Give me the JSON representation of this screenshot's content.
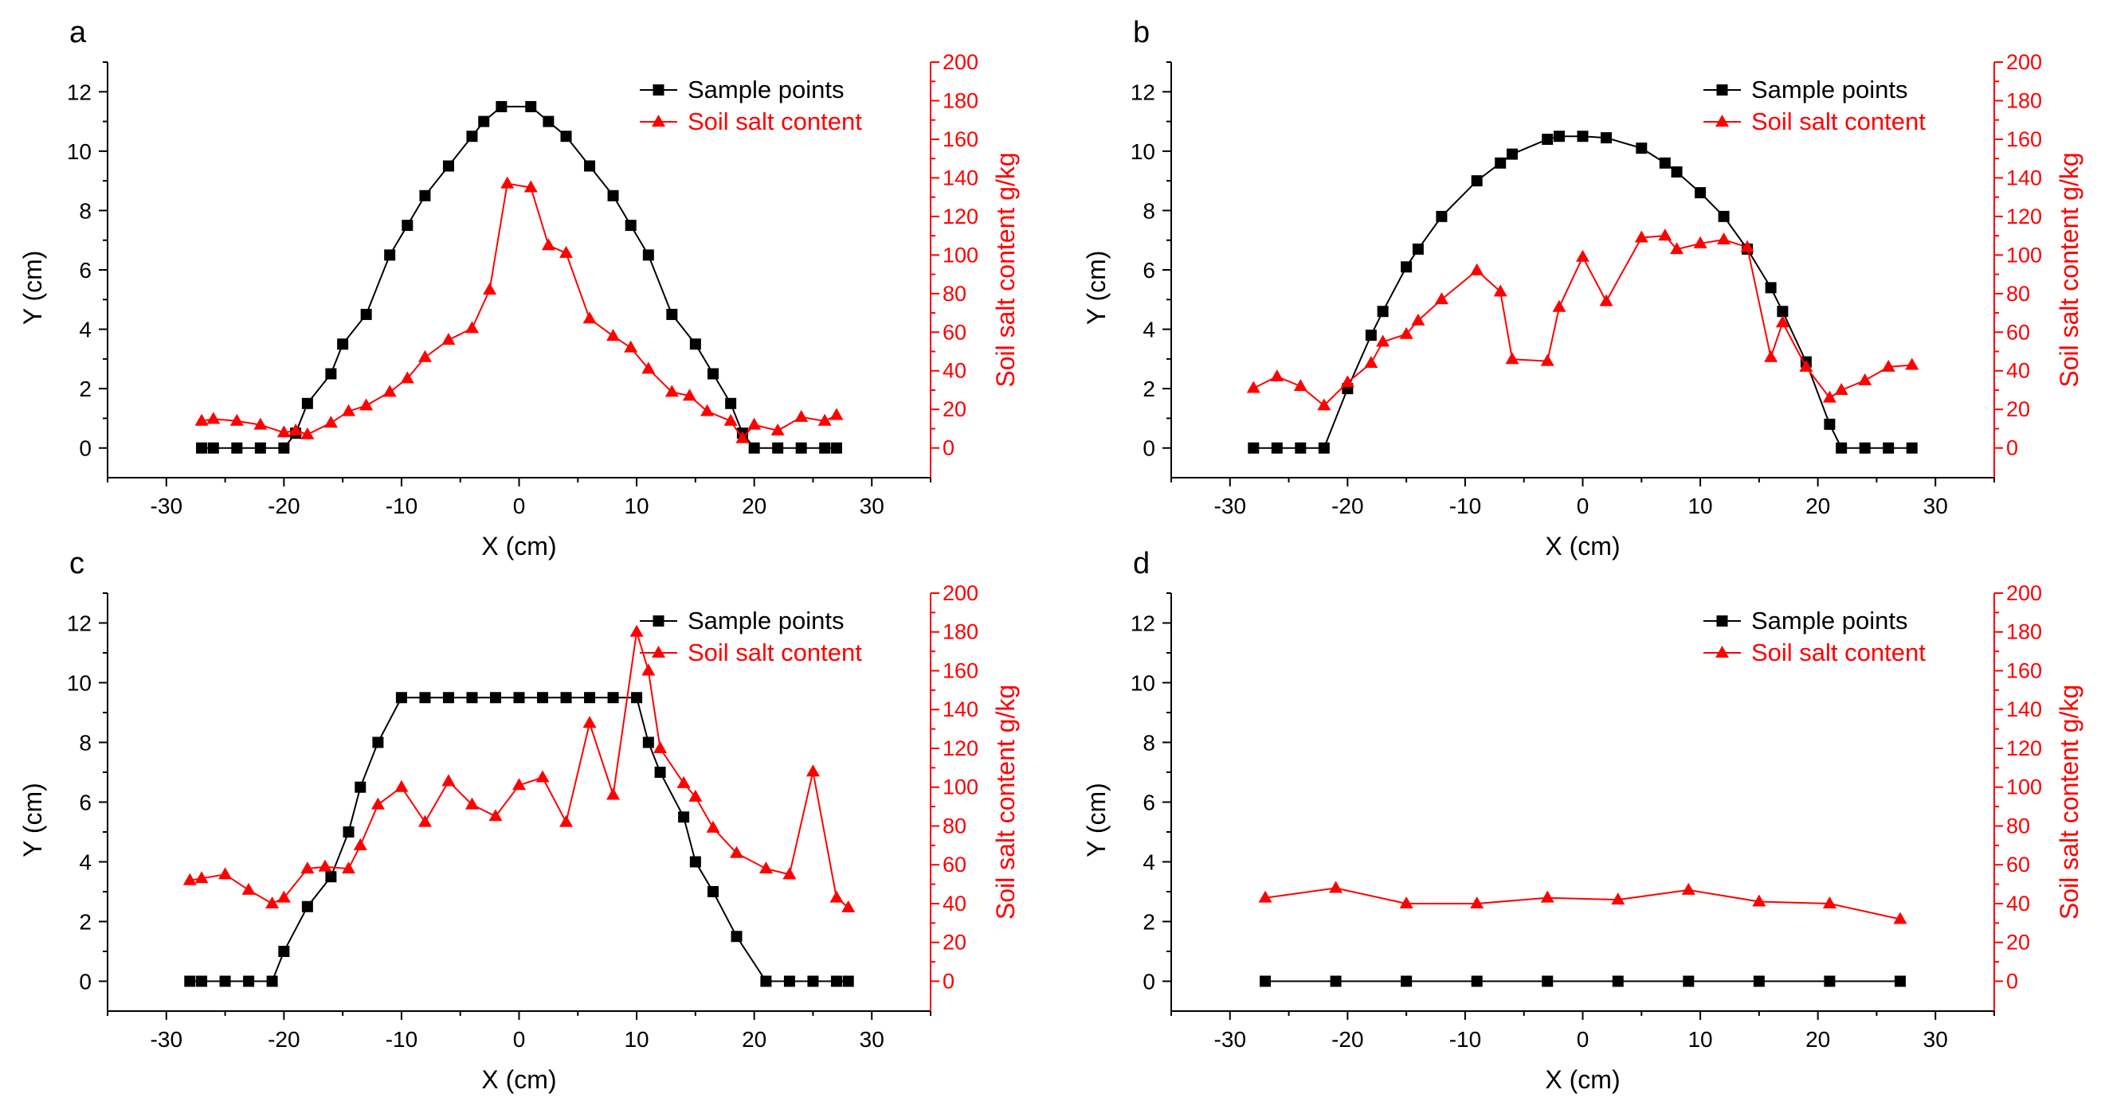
{
  "chart_data": [
    {
      "panel": "a",
      "type": "line",
      "xlabel": "X (cm)",
      "ylabel": "Y (cm)",
      "ylabel_right": "Soil salt content g/kg",
      "xlim": [
        -35,
        35
      ],
      "ylim": [
        -1,
        13
      ],
      "ylim_right": [
        -15.4,
        200
      ],
      "xticks": [
        -30,
        -20,
        -10,
        0,
        10,
        20,
        30
      ],
      "yticks": [
        0,
        2,
        4,
        6,
        8,
        10,
        12
      ],
      "yticks_right": [
        0,
        20,
        40,
        60,
        80,
        100,
        120,
        140,
        160,
        180,
        200
      ],
      "legend": {
        "position": "top-right",
        "entries": [
          "Sample points",
          "Soil salt content"
        ]
      },
      "series": [
        {
          "name": "Sample points",
          "axis": "left",
          "color": "#000000",
          "marker": "square",
          "x": [
            -27,
            -26,
            -24,
            -22,
            -20,
            -19,
            -18,
            -16,
            -15,
            -13,
            -11,
            -9.5,
            -8,
            -6,
            -4,
            -3,
            -1.5,
            1,
            2.5,
            4,
            6,
            8,
            9.5,
            11,
            13,
            15,
            16.5,
            18,
            19,
            20,
            22,
            24,
            26,
            27
          ],
          "y": [
            0,
            0,
            0,
            0,
            0,
            0.5,
            1.5,
            2.5,
            3.5,
            4.5,
            6.5,
            7.5,
            8.5,
            9.5,
            10.5,
            11,
            11.5,
            11.5,
            11,
            10.5,
            9.5,
            8.5,
            7.5,
            6.5,
            4.5,
            3.5,
            2.5,
            1.5,
            0.5,
            0,
            0,
            0,
            0,
            0
          ]
        },
        {
          "name": "Soil salt content",
          "axis": "right",
          "color": "#ff0000",
          "marker": "triangle",
          "x": [
            -27,
            -26,
            -24,
            -22,
            -20,
            -19,
            -18,
            -16,
            -14.5,
            -13,
            -11,
            -9.5,
            -8,
            -6,
            -4,
            -2.5,
            -1,
            1,
            2.5,
            4,
            6,
            8,
            9.5,
            11,
            13,
            14.5,
            16,
            18,
            19,
            20,
            22,
            24,
            26,
            27
          ],
          "y": [
            14,
            15,
            14,
            12,
            8,
            9,
            7,
            13,
            19,
            22,
            29,
            36,
            47,
            56,
            62,
            82,
            137,
            135,
            105,
            101,
            67,
            58,
            52,
            41,
            29,
            27,
            19,
            14,
            5,
            12,
            9,
            16,
            14,
            17
          ]
        }
      ]
    },
    {
      "panel": "b",
      "type": "line",
      "xlabel": "X (cm)",
      "ylabel": "Y (cm)",
      "ylabel_right": "Soil salt content g/kg",
      "xlim": [
        -35,
        35
      ],
      "ylim": [
        -1,
        13
      ],
      "ylim_right": [
        -15.4,
        200
      ],
      "xticks": [
        -30,
        -20,
        -10,
        0,
        10,
        20,
        30
      ],
      "yticks": [
        0,
        2,
        4,
        6,
        8,
        10,
        12
      ],
      "yticks_right": [
        0,
        20,
        40,
        60,
        80,
        100,
        120,
        140,
        160,
        180,
        200
      ],
      "legend": {
        "position": "top-right",
        "entries": [
          "Sample points",
          "Soil salt content"
        ]
      },
      "series": [
        {
          "name": "Sample points",
          "axis": "left",
          "color": "#000000",
          "marker": "square",
          "x": [
            -28,
            -26,
            -24,
            -22,
            -20,
            -18,
            -17,
            -15,
            -14,
            -12,
            -9,
            -7,
            -6,
            -3,
            -2,
            0,
            2,
            5,
            7,
            8,
            10,
            12,
            14,
            16,
            17,
            19,
            21,
            22,
            24,
            26,
            28
          ],
          "y": [
            0,
            0,
            0,
            0,
            2,
            3.8,
            4.6,
            6.1,
            6.7,
            7.8,
            9,
            9.6,
            9.9,
            10.4,
            10.5,
            10.5,
            10.45,
            10.1,
            9.6,
            9.3,
            8.6,
            7.8,
            6.7,
            5.4,
            4.6,
            2.9,
            0.8,
            0,
            0,
            0,
            0
          ]
        },
        {
          "name": "Soil salt content",
          "axis": "right",
          "color": "#ff0000",
          "marker": "triangle",
          "x": [
            -28,
            -26,
            -24,
            -22,
            -20,
            -18,
            -17,
            -15,
            -14,
            -12,
            -9,
            -7,
            -6,
            -3,
            -2,
            0,
            2,
            5,
            7,
            8,
            10,
            12,
            14,
            16,
            17,
            19,
            21,
            22,
            24,
            26,
            28
          ],
          "y": [
            31,
            37,
            32,
            22,
            34,
            44,
            55,
            59,
            66,
            77,
            92,
            81,
            46,
            45,
            73,
            99,
            76,
            109,
            110,
            103,
            106,
            108,
            104,
            47,
            65,
            42,
            26,
            30,
            35,
            42,
            43
          ]
        }
      ]
    },
    {
      "panel": "c",
      "type": "line",
      "xlabel": "X (cm)",
      "ylabel": "Y (cm)",
      "ylabel_right": "Soil salt content g/kg",
      "xlim": [
        -35,
        35
      ],
      "ylim": [
        -1,
        13
      ],
      "ylim_right": [
        -15.4,
        200
      ],
      "xticks": [
        -30,
        -20,
        -10,
        0,
        10,
        20,
        30
      ],
      "yticks": [
        0,
        2,
        4,
        6,
        8,
        10,
        12
      ],
      "yticks_right": [
        0,
        20,
        40,
        60,
        80,
        100,
        120,
        140,
        160,
        180,
        200
      ],
      "legend": {
        "position": "top-right",
        "entries": [
          "Sample points",
          "Soil salt content"
        ]
      },
      "series": [
        {
          "name": "Sample points",
          "axis": "left",
          "color": "#000000",
          "marker": "square",
          "x": [
            -28,
            -27,
            -25,
            -23,
            -21,
            -20,
            -18,
            -16,
            -14.5,
            -13.5,
            -12,
            -10,
            -8,
            -6,
            -4,
            -2,
            0,
            2,
            4,
            6,
            8,
            10,
            11,
            12,
            14,
            15,
            16.5,
            18.5,
            21,
            23,
            25,
            27,
            28
          ],
          "y": [
            0,
            0,
            0,
            0,
            0,
            1,
            2.5,
            3.5,
            5,
            6.5,
            8,
            9.5,
            9.5,
            9.5,
            9.5,
            9.5,
            9.5,
            9.5,
            9.5,
            9.5,
            9.5,
            9.5,
            8,
            7,
            5.5,
            4,
            3,
            1.5,
            0,
            0,
            0,
            0,
            0
          ]
        },
        {
          "name": "Soil salt content",
          "axis": "right",
          "color": "#ff0000",
          "marker": "triangle",
          "x": [
            -28,
            -27,
            -25,
            -23,
            -21,
            -20,
            -18,
            -16.5,
            -14.5,
            -13.5,
            -12,
            -10,
            -8,
            -6,
            -4,
            -2,
            0,
            2,
            4,
            6,
            8,
            10,
            11,
            12,
            14,
            15,
            16.5,
            18.5,
            21,
            23,
            25,
            27,
            28
          ],
          "y": [
            52,
            53,
            55,
            47,
            40,
            43,
            58,
            59,
            58,
            70,
            91,
            100,
            82,
            103,
            91,
            85,
            101,
            105,
            82,
            133,
            96,
            180,
            160,
            120,
            102,
            95,
            79,
            66,
            58,
            55,
            108,
            43,
            38
          ]
        }
      ]
    },
    {
      "panel": "d",
      "type": "line",
      "xlabel": "X (cm)",
      "ylabel": "Y (cm)",
      "ylabel_right": "Soil salt content g/kg",
      "xlim": [
        -35,
        35
      ],
      "ylim": [
        -1,
        13
      ],
      "ylim_right": [
        -15.4,
        200
      ],
      "xticks": [
        -30,
        -20,
        -10,
        0,
        10,
        20,
        30
      ],
      "yticks": [
        0,
        2,
        4,
        6,
        8,
        10,
        12
      ],
      "yticks_right": [
        0,
        20,
        40,
        60,
        80,
        100,
        120,
        140,
        160,
        180,
        200
      ],
      "legend": {
        "position": "top-right",
        "entries": [
          "Sample points",
          "Soil salt content"
        ]
      },
      "series": [
        {
          "name": "Sample points",
          "axis": "left",
          "color": "#000000",
          "marker": "square",
          "x": [
            -27,
            -21,
            -15,
            -9,
            -3,
            3,
            9,
            15,
            21,
            27
          ],
          "y": [
            0,
            0,
            0,
            0,
            0,
            0,
            0,
            0,
            0,
            0
          ]
        },
        {
          "name": "Soil salt content",
          "axis": "right",
          "color": "#ff0000",
          "marker": "triangle",
          "x": [
            -27,
            -21,
            -15,
            -9,
            -3,
            3,
            9,
            15,
            21,
            27
          ],
          "y": [
            43,
            48,
            40,
            40,
            43,
            42,
            47,
            41,
            40,
            32
          ]
        }
      ]
    }
  ]
}
